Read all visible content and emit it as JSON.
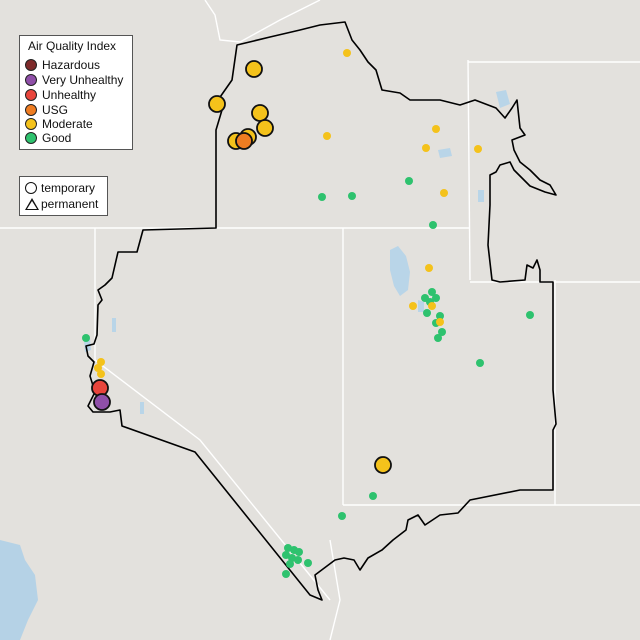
{
  "legend": {
    "title": "Air Quality Index",
    "items": [
      {
        "label": "Hazardous",
        "color": "#7e2a2a"
      },
      {
        "label": "Very Unhealthy",
        "color": "#8f4fa8"
      },
      {
        "label": "Unhealthy",
        "color": "#e8453c"
      },
      {
        "label": "USG",
        "color": "#ef7d22"
      },
      {
        "label": "Moderate",
        "color": "#f4c21b"
      },
      {
        "label": "Good",
        "color": "#2ec26e"
      }
    ]
  },
  "monitor_legend": {
    "items": [
      {
        "label": "temporary",
        "shape": "circle"
      },
      {
        "label": "permanent",
        "shape": "triangle"
      }
    ]
  },
  "colors": {
    "land": "#e3e1dd",
    "water": "#b5d2e6",
    "state_border": "#ffffff",
    "region_outline": "#000000"
  }
}
